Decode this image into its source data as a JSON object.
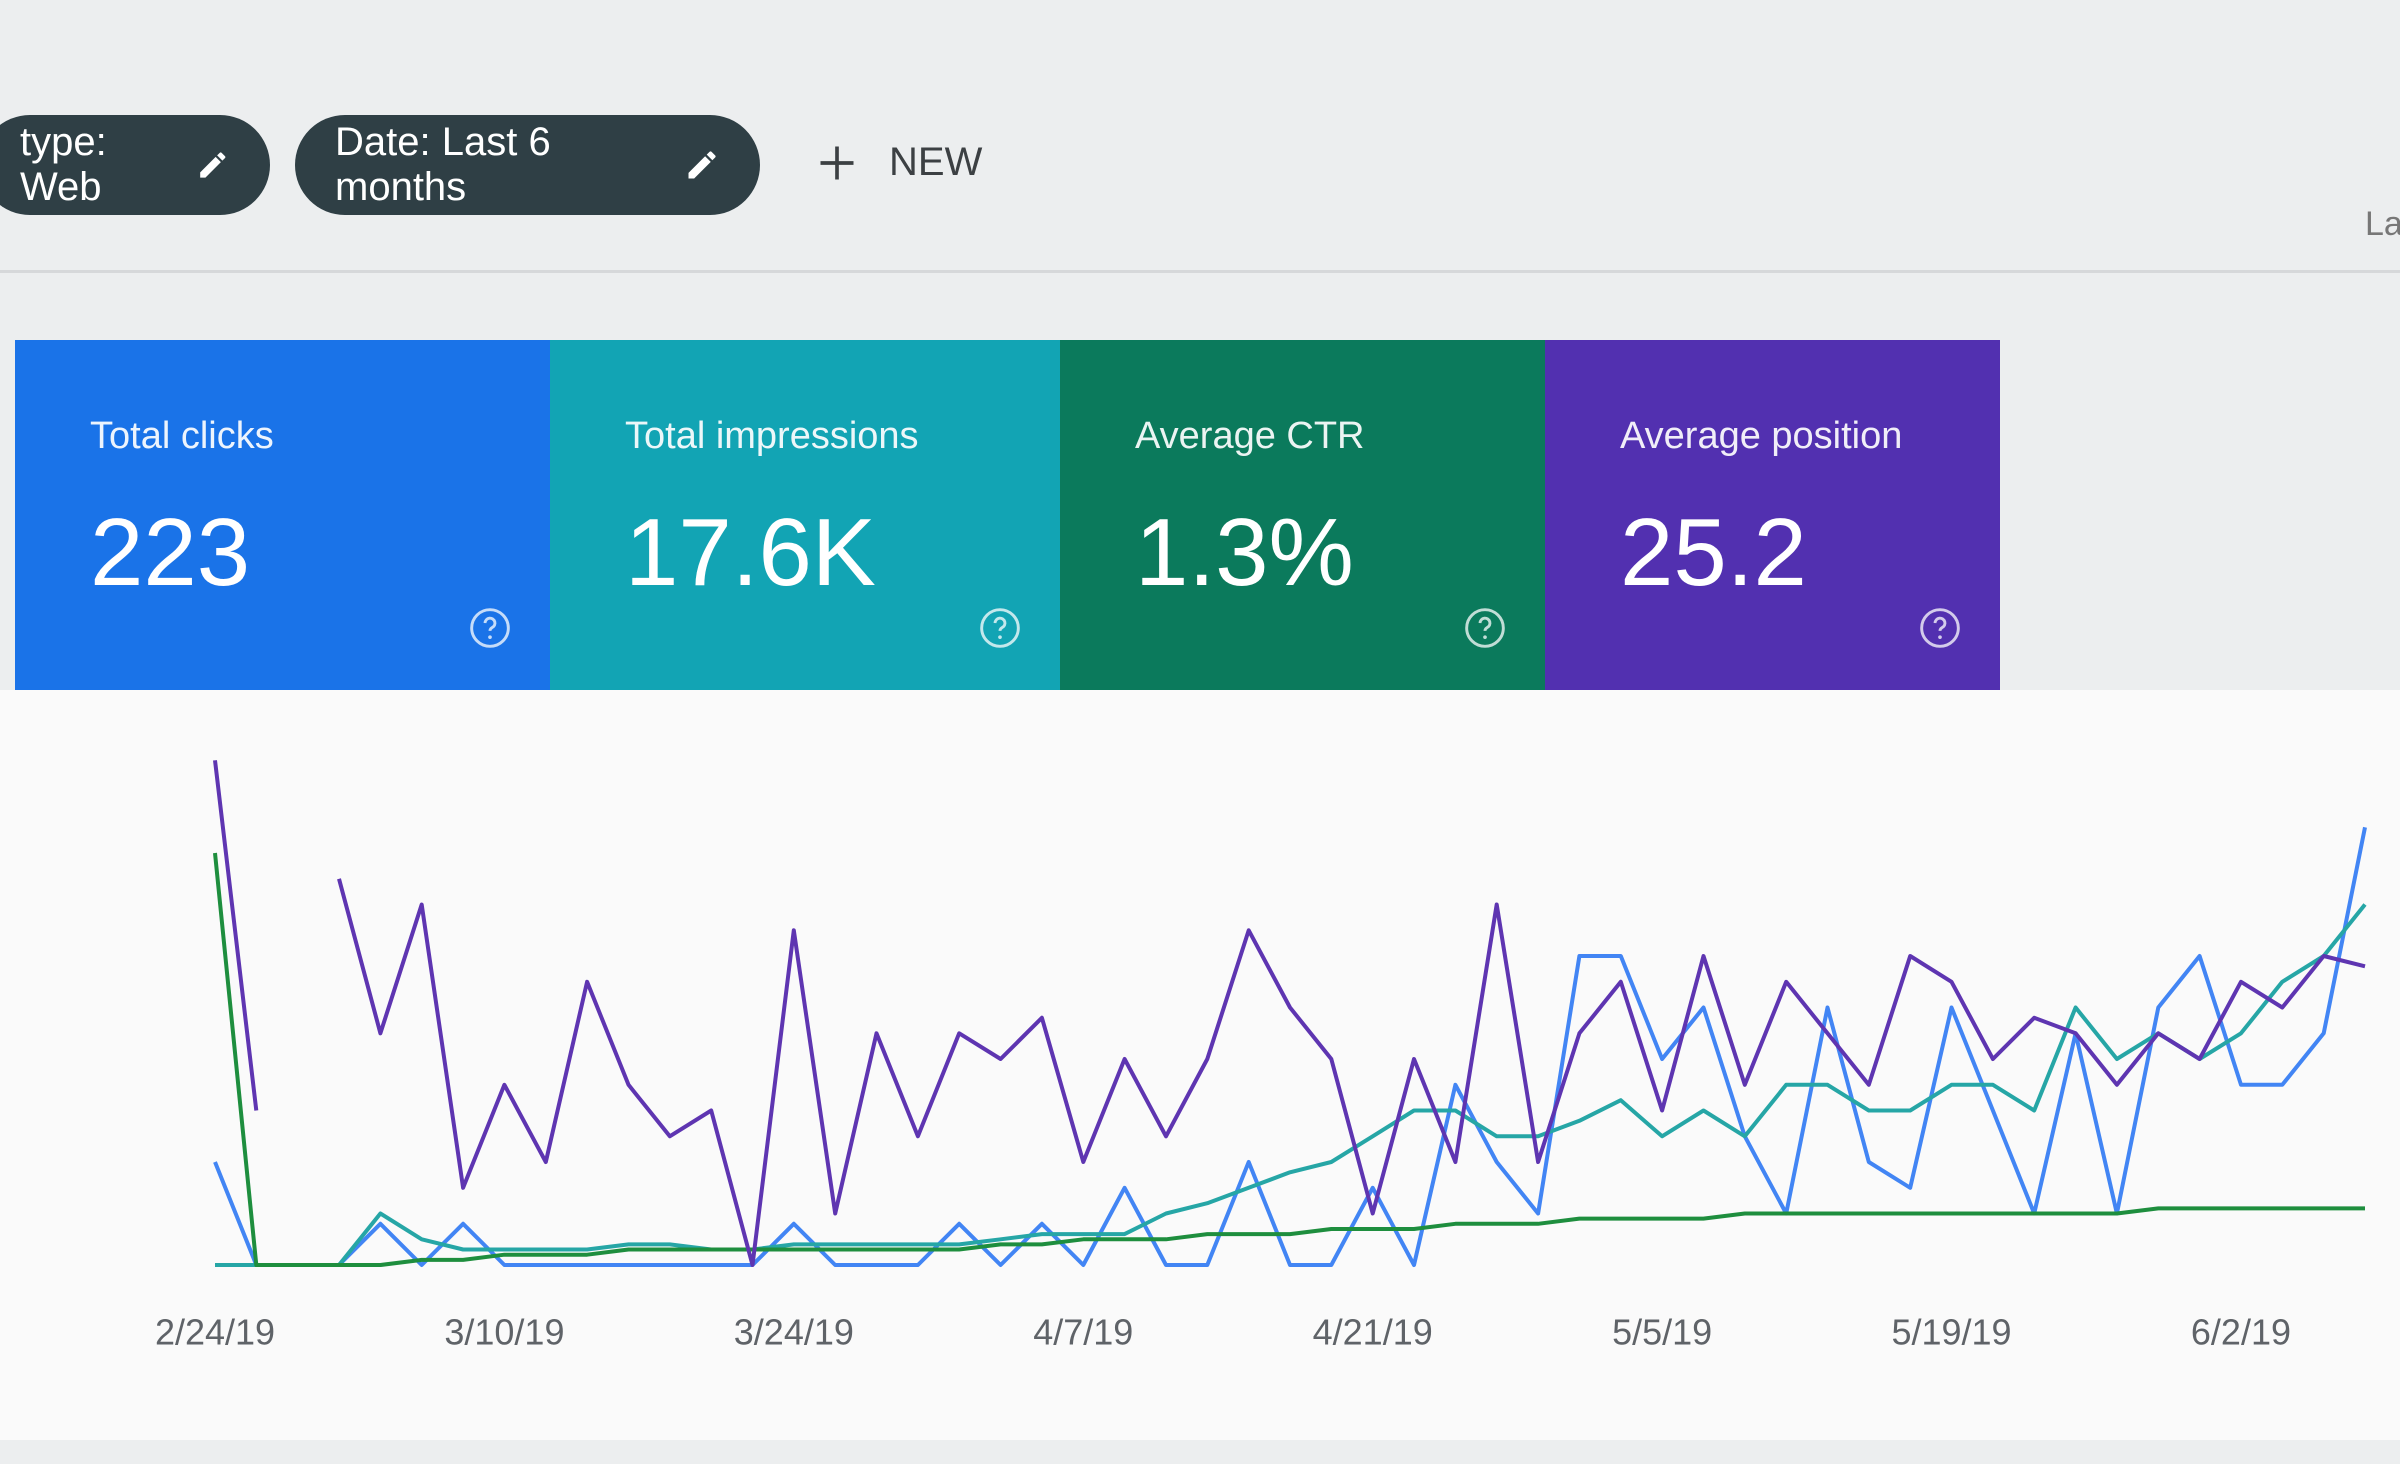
{
  "filters": [
    {
      "label": "type: Web"
    },
    {
      "label": "Date: Last 6 months"
    }
  ],
  "new_button": "NEW",
  "header_fragment": "La",
  "metrics": [
    {
      "title": "Total clicks",
      "value": "223",
      "color": "#1a73e8"
    },
    {
      "title": "Total impressions",
      "value": "17.6K",
      "color": "#12a4b4"
    },
    {
      "title": "Average CTR",
      "value": "1.3%",
      "color": "#0b7a5c"
    },
    {
      "title": "Average position",
      "value": "25.2",
      "color": "#5230b0"
    }
  ],
  "chart_data": {
    "type": "line",
    "categories": [
      "2/24/19",
      null,
      null,
      null,
      null,
      null,
      null,
      "3/10/19",
      null,
      null,
      null,
      null,
      null,
      null,
      "3/24/19",
      null,
      null,
      null,
      null,
      null,
      null,
      "4/7/19",
      null,
      null,
      null,
      null,
      null,
      null,
      "4/21/19",
      null,
      null,
      null,
      null,
      null,
      null,
      "5/5/19",
      null,
      null,
      null,
      null,
      null,
      null,
      "5/19/19",
      null,
      null,
      null,
      null,
      null,
      null,
      "6/2/19",
      null,
      null,
      null
    ],
    "ylim": [
      0,
      100
    ],
    "series": [
      {
        "color": "#4285f4",
        "values": [
          20,
          0,
          0,
          0,
          8,
          0,
          8,
          0,
          0,
          0,
          0,
          0,
          0,
          0,
          8,
          0,
          0,
          0,
          8,
          0,
          8,
          0,
          15,
          0,
          0,
          20,
          0,
          0,
          15,
          0,
          35,
          20,
          10,
          60,
          60,
          40,
          50,
          25,
          10,
          50,
          20,
          15,
          50,
          30,
          10,
          45,
          10,
          50,
          60,
          35,
          35,
          45,
          85
        ]
      },
      {
        "color": "#26a6a6",
        "values": [
          0,
          0,
          0,
          0,
          10,
          5,
          3,
          3,
          3,
          3,
          4,
          4,
          3,
          3,
          4,
          4,
          4,
          4,
          4,
          5,
          6,
          6,
          6,
          10,
          12,
          15,
          18,
          20,
          25,
          30,
          30,
          25,
          25,
          28,
          32,
          25,
          30,
          25,
          35,
          35,
          30,
          30,
          35,
          35,
          30,
          50,
          40,
          45,
          40,
          45,
          55,
          60,
          70
        ]
      },
      {
        "color": "#1e8e3e",
        "values": [
          80,
          0,
          0,
          0,
          0,
          1,
          1,
          2,
          2,
          2,
          3,
          3,
          3,
          3,
          3,
          3,
          3,
          3,
          3,
          4,
          4,
          5,
          5,
          5,
          6,
          6,
          6,
          7,
          7,
          7,
          8,
          8,
          8,
          9,
          9,
          9,
          9,
          10,
          10,
          10,
          10,
          10,
          10,
          10,
          10,
          10,
          10,
          11,
          11,
          11,
          11,
          11,
          11
        ]
      },
      {
        "color": "#5e35b1",
        "values": [
          98,
          30,
          null,
          75,
          45,
          70,
          15,
          35,
          20,
          55,
          35,
          25,
          30,
          0,
          65,
          10,
          45,
          25,
          45,
          40,
          48,
          20,
          40,
          25,
          40,
          65,
          50,
          40,
          10,
          40,
          20,
          70,
          20,
          45,
          55,
          30,
          60,
          35,
          55,
          45,
          35,
          60,
          55,
          40,
          48,
          45,
          35,
          45,
          40,
          55,
          50,
          60,
          58
        ]
      }
    ]
  }
}
